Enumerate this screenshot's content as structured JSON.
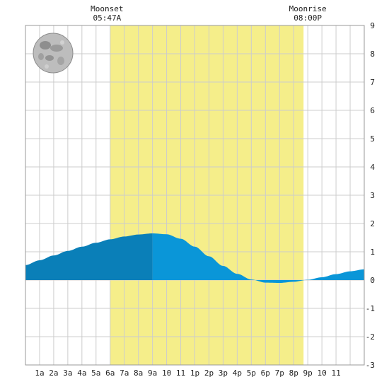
{
  "chart_data": {
    "type": "area",
    "title": "",
    "xlabel": "",
    "ylabel": "",
    "xlim": [
      0,
      24
    ],
    "ylim": [
      -3,
      9
    ],
    "grid": true,
    "x_tick_labels": [
      {
        "hour": 1,
        "label": "1a"
      },
      {
        "hour": 2,
        "label": "2a"
      },
      {
        "hour": 3,
        "label": "3a"
      },
      {
        "hour": 4,
        "label": "4a"
      },
      {
        "hour": 5,
        "label": "5a"
      },
      {
        "hour": 6,
        "label": "6a"
      },
      {
        "hour": 7,
        "label": "7a"
      },
      {
        "hour": 8,
        "label": "8a"
      },
      {
        "hour": 9,
        "label": "9a"
      },
      {
        "hour": 10,
        "label": "10"
      },
      {
        "hour": 11,
        "label": "11"
      },
      {
        "hour": 12,
        "label": "1p"
      },
      {
        "hour": 13,
        "label": "2p"
      },
      {
        "hour": 14,
        "label": "3p"
      },
      {
        "hour": 15,
        "label": "4p"
      },
      {
        "hour": 16,
        "label": "5p"
      },
      {
        "hour": 17,
        "label": "6p"
      },
      {
        "hour": 18,
        "label": "7p"
      },
      {
        "hour": 19,
        "label": "8p"
      },
      {
        "hour": 20,
        "label": "9p"
      },
      {
        "hour": 21,
        "label": "10"
      },
      {
        "hour": 22,
        "label": "11"
      }
    ],
    "y_tick_labels": [
      "-3",
      "-2",
      "-1",
      "0",
      "1",
      "2",
      "3",
      "4",
      "5",
      "6",
      "7",
      "8",
      "9"
    ],
    "daylight": {
      "start_hour": 6.0,
      "end_hour": 19.7
    },
    "current_time_hour": 9.0,
    "series": [
      {
        "points": [
          [
            0,
            0.53
          ],
          [
            1,
            0.7
          ],
          [
            2,
            0.87
          ],
          [
            3,
            1.03
          ],
          [
            4,
            1.18
          ],
          [
            5,
            1.32
          ],
          [
            6,
            1.44
          ],
          [
            7,
            1.54
          ],
          [
            8,
            1.61
          ],
          [
            9,
            1.65
          ],
          [
            10,
            1.62
          ],
          [
            11,
            1.46
          ],
          [
            12,
            1.18
          ],
          [
            13,
            0.84
          ],
          [
            14,
            0.5
          ],
          [
            15,
            0.22
          ],
          [
            16,
            0.02
          ],
          [
            17,
            -0.09
          ],
          [
            18,
            -0.1
          ],
          [
            19,
            -0.06
          ],
          [
            20,
            0.01
          ],
          [
            21,
            0.1
          ],
          [
            22,
            0.21
          ],
          [
            23,
            0.31
          ],
          [
            24,
            0.38
          ]
        ]
      }
    ],
    "annotations": [
      {
        "name": "moonset",
        "title": "Moonset",
        "time": "05:47A",
        "hour": 5.78
      },
      {
        "name": "moonrise",
        "title": "Moonrise",
        "time": "08:00P",
        "hour": 20.0
      }
    ],
    "moon_phase": "full-moon-icon",
    "colors": {
      "background": "#ffffff",
      "grid": "#cccccc",
      "daylight": "#f5ee8a",
      "tide_past": "#0a7fb8",
      "tide_future": "#0a96d8",
      "text": "#222222"
    }
  }
}
